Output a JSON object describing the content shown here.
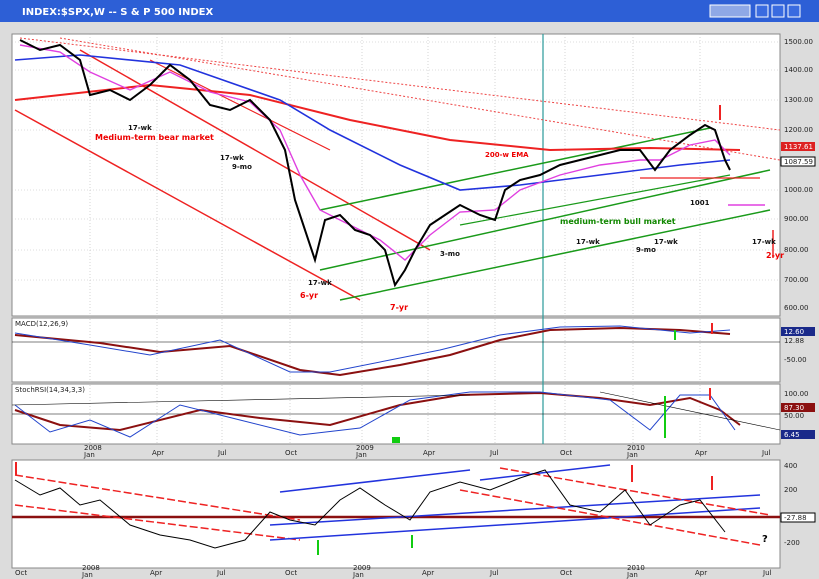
{
  "window": {
    "title": "INDEX:$SPX,W -- S & P 500 INDEX"
  },
  "price_panel": {
    "axis_labels": [
      "1500.00",
      "1400.00",
      "1300.00",
      "1200.00",
      "1137.61",
      "1087.59",
      "1000.00",
      "900.00",
      "800.00",
      "700.00",
      "600.00"
    ],
    "annotations": [
      "Medium-term bear market",
      "17-wk",
      "17-wk",
      "9-mo",
      "17-wk",
      "6-yr",
      "7-yr",
      "3-mo",
      "200-w EMA",
      "medium-term bull market",
      "17-wk",
      "9-mo",
      "17-wk",
      "1001",
      "17-wk",
      "2-yr"
    ]
  },
  "macd_panel": {
    "label": "MACD(12,26,9)",
    "axis_labels": [
      "12.60",
      "12.88",
      "-50.00"
    ]
  },
  "stoch_panel": {
    "label": "StochRSI(14,34,3,3)",
    "axis_labels": [
      "100.00",
      "87.30",
      "50.00",
      "6.45"
    ]
  },
  "upper_dates": [
    "2008",
    "Jan",
    "Apr",
    "Jul",
    "Oct",
    "2009",
    "Jan",
    "Apr",
    "Jul",
    "Oct",
    "2010",
    "Jan",
    "Apr",
    "Jul"
  ],
  "oscillator_panel": {
    "axis_labels": [
      "400",
      "200",
      "-27.88",
      "-200"
    ],
    "annotations": [
      "?"
    ]
  },
  "lower_dates": [
    "Oct",
    "2008",
    "Jan",
    "Apr",
    "Jul",
    "Oct",
    "2009",
    "Jan",
    "Apr",
    "Jul",
    "Oct",
    "2010",
    "Jan",
    "Apr",
    "Jul"
  ]
}
